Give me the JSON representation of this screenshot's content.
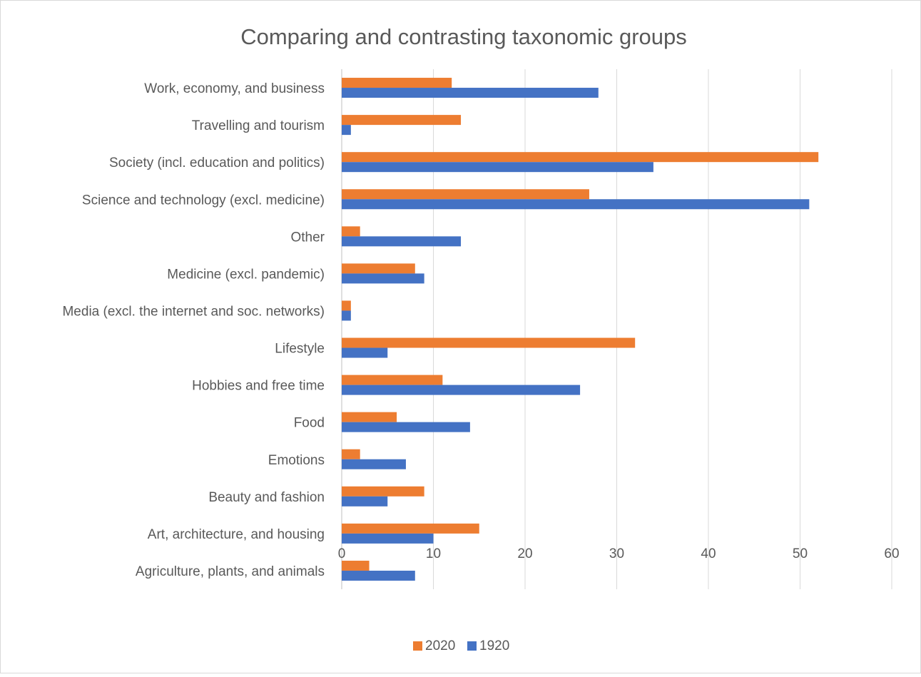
{
  "chart_data": {
    "type": "bar",
    "orientation": "horizontal",
    "title": "Comparing and contrasting taxonomic groups",
    "xlabel": "",
    "ylabel": "",
    "xlim": [
      0,
      60
    ],
    "xticks": [
      "0",
      "10",
      "20",
      "30",
      "40",
      "50",
      "60"
    ],
    "grid": "vertical",
    "legend_position": "bottom",
    "categories": [
      "Work, economy, and business",
      "Travelling and tourism",
      "Society (incl. education and politics)",
      "Science and technology (excl. medicine)",
      "Other",
      "Medicine (excl. pandemic)",
      "Media (excl. the internet and soc. networks)",
      "Lifestyle",
      "Hobbies and free time",
      "Food",
      "Emotions",
      "Beauty and fashion",
      "Art, architecture, and housing",
      "Agriculture, plants, and animals"
    ],
    "series": [
      {
        "name": "2020",
        "color": "#ED7D31",
        "values": [
          12,
          13,
          52,
          27,
          2,
          8,
          1,
          32,
          11,
          6,
          2,
          9,
          15,
          3
        ]
      },
      {
        "name": "1920",
        "color": "#4472C4",
        "values": [
          28,
          1,
          34,
          51,
          13,
          9,
          1,
          5,
          26,
          14,
          7,
          5,
          10,
          8
        ]
      }
    ]
  }
}
